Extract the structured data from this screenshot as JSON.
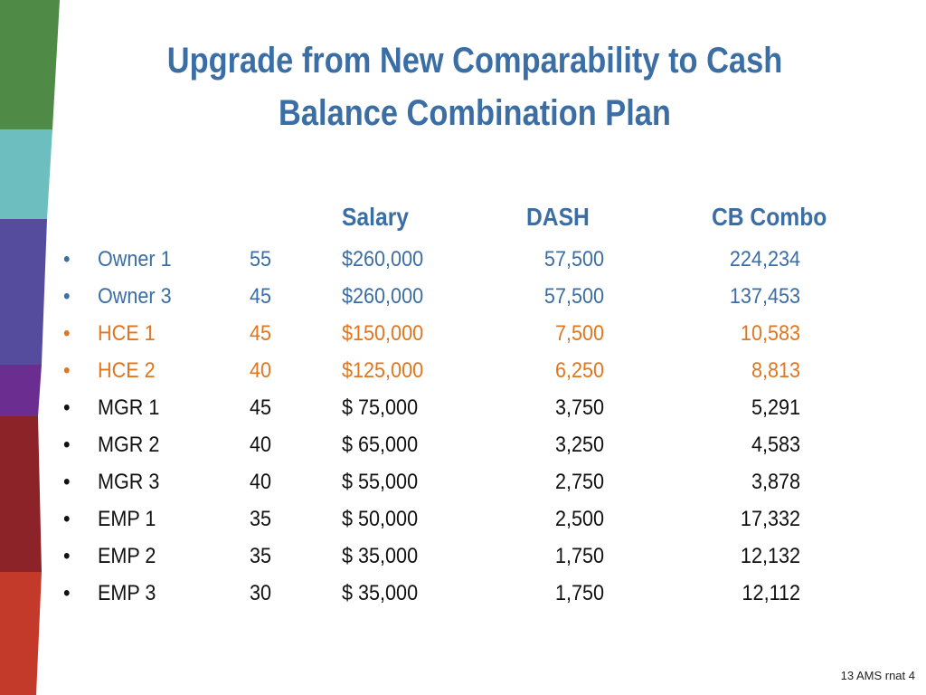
{
  "slide": {
    "title_line1": "Upgrade from New Comparability to Cash",
    "title_line2": "Balance Combination Plan",
    "footer": "13 AMS rnat 4"
  },
  "colors": {
    "title": "#3b6ea5",
    "owner_rows": "#3b6ea5",
    "hce_rows": "#e0761f",
    "other_rows": "#111111"
  },
  "table": {
    "headers": {
      "salary": "Salary",
      "dash": "DASH",
      "cb_combo": "CB Combo"
    },
    "bullet": "•",
    "rows": [
      {
        "name": "Owner 1",
        "age": "55",
        "salary": "$260,000",
        "dash": "57,500",
        "cb": "224,234",
        "group": "blue"
      },
      {
        "name": "Owner 3",
        "age": "45",
        "salary": "$260,000",
        "dash": "57,500",
        "cb": "137,453",
        "group": "blue"
      },
      {
        "name": "HCE 1",
        "age": "45",
        "salary": "$150,000",
        "dash": "7,500",
        "cb": "10,583",
        "group": "orange"
      },
      {
        "name": "HCE 2",
        "age": "40",
        "salary": "$125,000",
        "dash": "6,250",
        "cb": "8,813",
        "group": "orange"
      },
      {
        "name": "MGR 1",
        "age": "45",
        "salary": "$ 75,000",
        "dash": "3,750",
        "cb": "5,291",
        "group": "black"
      },
      {
        "name": "MGR 2",
        "age": "40",
        "salary": "$ 65,000",
        "dash": "3,250",
        "cb": "4,583",
        "group": "black"
      },
      {
        "name": "MGR 3",
        "age": "40",
        "salary": "$ 55,000",
        "dash": "2,750",
        "cb": "3,878",
        "group": "black"
      },
      {
        "name": "EMP 1",
        "age": "35",
        "salary": "$ 50,000",
        "dash": "2,500",
        "cb": "17,332",
        "group": "black"
      },
      {
        "name": "EMP 2",
        "age": "35",
        "salary": "$ 35,000",
        "dash": "1,750",
        "cb": "12,132",
        "group": "black"
      },
      {
        "name": "EMP 3",
        "age": "30",
        "salary": "$ 35,000",
        "dash": "1,750",
        "cb": "12,112",
        "group": "black"
      }
    ]
  }
}
